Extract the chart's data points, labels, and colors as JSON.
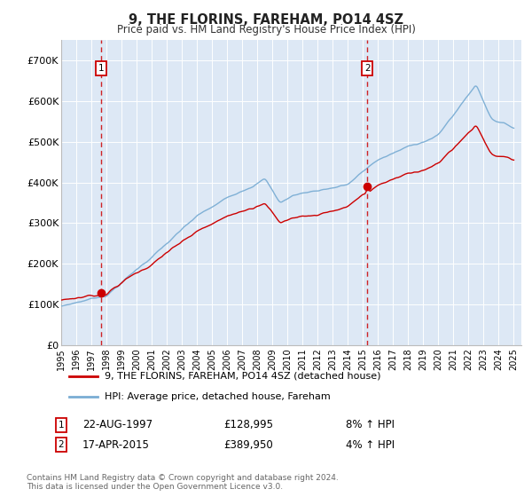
{
  "title": "9, THE FLORINS, FAREHAM, PO14 4SZ",
  "subtitle": "Price paid vs. HM Land Registry's House Price Index (HPI)",
  "legend_line1": "9, THE FLORINS, FAREHAM, PO14 4SZ (detached house)",
  "legend_line2": "HPI: Average price, detached house, Fareham",
  "annotation1_date": "22-AUG-1997",
  "annotation1_price": "£128,995",
  "annotation1_hpi": "8% ↑ HPI",
  "annotation2_date": "17-APR-2015",
  "annotation2_price": "£389,950",
  "annotation2_hpi": "4% ↑ HPI",
  "footnote": "Contains HM Land Registry data © Crown copyright and database right 2024.\nThis data is licensed under the Open Government Licence v3.0.",
  "red_line_color": "#cc0000",
  "blue_line_color": "#7aadd4",
  "plot_bg": "#dde8f5",
  "grid_color": "#ffffff",
  "anno_vline_color": "#cc0000",
  "ylim": [
    0,
    750000
  ],
  "yticks": [
    0,
    100000,
    200000,
    300000,
    400000,
    500000,
    600000,
    700000
  ],
  "ytick_labels": [
    "£0",
    "£100K",
    "£200K",
    "£300K",
    "£400K",
    "£500K",
    "£600K",
    "£700K"
  ],
  "sale1_year": 1997.64,
  "sale1_price": 128995,
  "sale2_year": 2015.29,
  "sale2_price": 389950
}
